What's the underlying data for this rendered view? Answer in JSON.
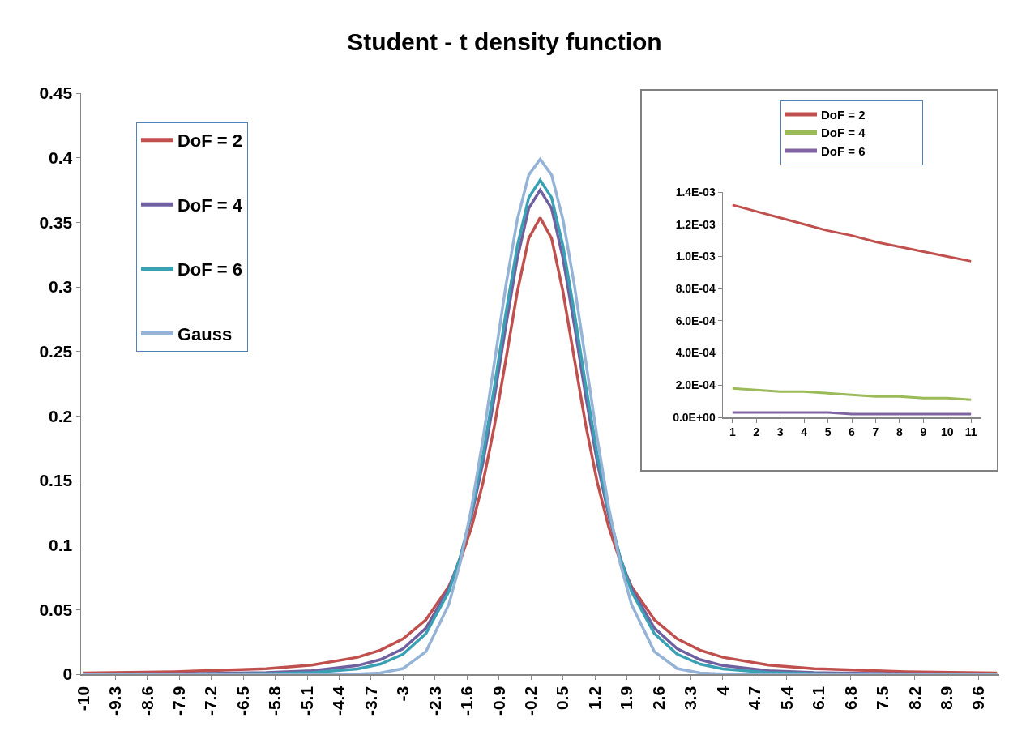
{
  "chart_data": [
    {
      "type": "line",
      "title": "Student - t density function",
      "x": [
        -10,
        -8,
        -6,
        -5,
        -4,
        -3.5,
        -3,
        -2.5,
        -2,
        -1.75,
        -1.5,
        -1.25,
        -1,
        -0.75,
        -0.5,
        -0.25,
        0,
        0.25,
        0.5,
        0.75,
        1,
        1.25,
        1.5,
        1.75,
        2,
        2.5,
        3,
        3.5,
        4,
        5,
        6,
        8,
        10
      ],
      "series": [
        {
          "name": "DoF = 2",
          "color": "#c0504d",
          "values": [
            0.001,
            0.0019,
            0.0043,
            0.0071,
            0.0131,
            0.0186,
            0.0274,
            0.0422,
            0.068,
            0.0878,
            0.1141,
            0.1487,
            0.1925,
            0.2438,
            0.2963,
            0.3376,
            0.3536,
            0.3376,
            0.2963,
            0.2438,
            0.1925,
            0.1487,
            0.1141,
            0.0878,
            0.068,
            0.0422,
            0.0274,
            0.0186,
            0.0131,
            0.0071,
            0.0043,
            0.0019,
            0.001
          ]
        },
        {
          "name": "DoF = 4",
          "color": "#7060a0",
          "values": [
            0.0001,
            0.0003,
            0.0012,
            0.0027,
            0.0067,
            0.0113,
            0.0197,
            0.0357,
            0.0663,
            0.0905,
            0.1229,
            0.1644,
            0.2147,
            0.2699,
            0.3222,
            0.3608,
            0.375,
            0.3608,
            0.3222,
            0.2699,
            0.2147,
            0.1644,
            0.1229,
            0.0905,
            0.0663,
            0.0357,
            0.0197,
            0.0113,
            0.0067,
            0.0027,
            0.0012,
            0.0003,
            0.0001
          ]
        },
        {
          "name": "DoF = 6",
          "color": "#3aa0b4",
          "values": [
            0,
            0.0001,
            0.0004,
            0.0012,
            0.0041,
            0.0078,
            0.0155,
            0.0315,
            0.064,
            0.0904,
            0.1255,
            0.1702,
            0.2231,
            0.2797,
            0.3317,
            0.3691,
            0.3827,
            0.3691,
            0.3317,
            0.2797,
            0.2231,
            0.1702,
            0.1255,
            0.0904,
            0.064,
            0.0315,
            0.0155,
            0.0078,
            0.0041,
            0.0012,
            0.0004,
            0.0001,
            0
          ]
        },
        {
          "name": "Gauss",
          "color": "#95b3d7",
          "values": [
            0,
            0,
            0,
            0,
            0.0001,
            0.0009,
            0.0044,
            0.0175,
            0.054,
            0.0863,
            0.1295,
            0.1826,
            0.242,
            0.3011,
            0.3521,
            0.3867,
            0.3989,
            0.3867,
            0.3521,
            0.3011,
            0.242,
            0.1826,
            0.1295,
            0.0863,
            0.054,
            0.0175,
            0.0044,
            0.0009,
            0.0001,
            0,
            0,
            0,
            0
          ]
        }
      ],
      "xlim": [
        -10.05,
        10.05
      ],
      "xticks": [
        -10,
        -9.3,
        -8.6,
        -7.9,
        -7.2,
        -6.5,
        -5.8,
        -5.1,
        -4.4,
        -3.7,
        -3,
        -2.3,
        -1.6,
        -0.9,
        -0.2,
        0.5,
        1.2,
        1.9,
        2.6,
        3.3,
        4,
        4.7,
        5.4,
        6.1,
        6.8,
        7.5,
        8.2,
        8.9,
        9.6
      ],
      "ylim": [
        0,
        0.45
      ],
      "yticks": [
        0,
        0.05,
        0.1,
        0.15,
        0.2,
        0.25,
        0.3,
        0.35,
        0.4,
        0.45
      ],
      "grid": false,
      "legend": "top left",
      "marker": "none",
      "line_style": "solid"
    },
    {
      "type": "line",
      "categories": [
        "1",
        "2",
        "3",
        "4",
        "5",
        "6",
        "7",
        "8",
        "9",
        "10",
        "11"
      ],
      "series": [
        {
          "name": "DoF = 2",
          "color": "#c0504d",
          "values": [
            0.00132,
            0.00128,
            0.00124,
            0.0012,
            0.00116,
            0.00113,
            0.00109,
            0.00106,
            0.00103,
            0.001,
            0.00097
          ]
        },
        {
          "name": "DoF = 4",
          "color": "#9bbb59",
          "values": [
            0.00018,
            0.00017,
            0.00016,
            0.00016,
            0.00015,
            0.00014,
            0.00013,
            0.00013,
            0.00012,
            0.00012,
            0.00011
          ]
        },
        {
          "name": "DoF = 6",
          "color": "#8064a2",
          "values": [
            3e-05,
            3e-05,
            3e-05,
            3e-05,
            3e-05,
            2e-05,
            2e-05,
            2e-05,
            2e-05,
            2e-05,
            2e-05
          ]
        }
      ],
      "ylim": [
        0,
        0.0014
      ],
      "yticks": [
        {
          "value": 0,
          "label": "0.0E+00"
        },
        {
          "value": 0.0002,
          "label": "2.0E-04"
        },
        {
          "value": 0.0004,
          "label": "4.0E-04"
        },
        {
          "value": 0.0006,
          "label": "6.0E-04"
        },
        {
          "value": 0.0008,
          "label": "8.0E-04"
        },
        {
          "value": 0.001,
          "label": "1.0E-03"
        },
        {
          "value": 0.0012,
          "label": "1.2E-03"
        },
        {
          "value": 0.0014,
          "label": "1.4E-03"
        }
      ],
      "grid": false,
      "legend": "top",
      "marker": "none",
      "line_style": "solid"
    }
  ]
}
